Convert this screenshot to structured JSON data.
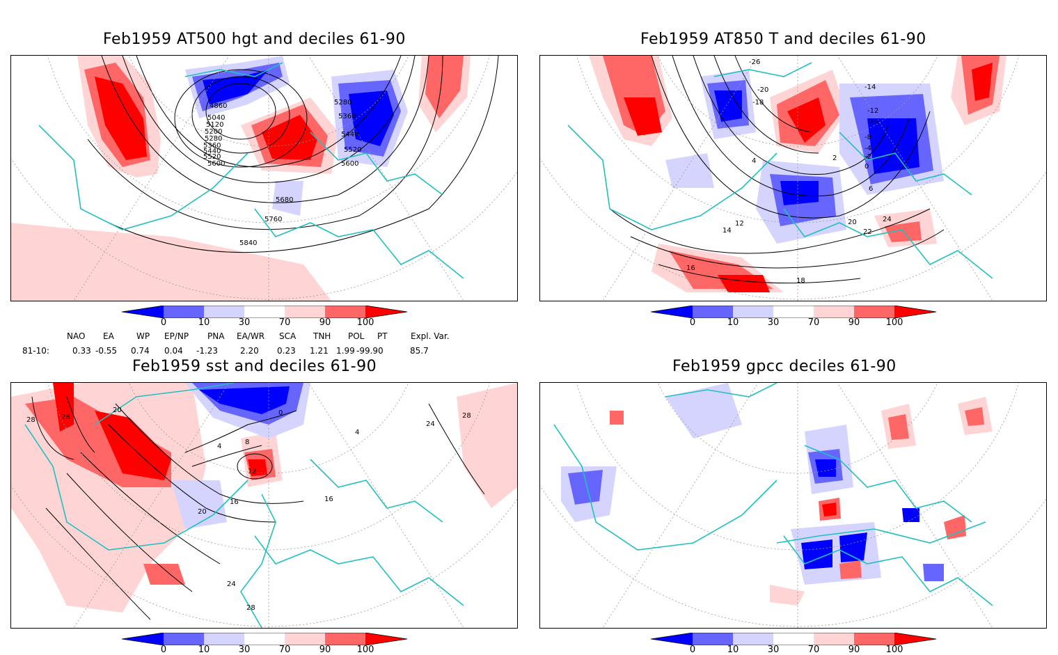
{
  "panels": [
    {
      "title": "Feb1959  AT500 hgt and deciles 61-90",
      "contour_labels": [
        "4860",
        "5040",
        "5120",
        "5200",
        "5280",
        "5360",
        "5440",
        "5520",
        "5600",
        "5280",
        "5360",
        "5440",
        "5520",
        "5600",
        "5680",
        "5760",
        "5840"
      ]
    },
    {
      "title": "Feb1959  AT850 T and deciles 61-90",
      "contour_labels": [
        "-26",
        "-20",
        "-18",
        "-14",
        "-12",
        "-10",
        "-8",
        "-4",
        "-2",
        "0",
        "2",
        "4",
        "6",
        "12",
        "14",
        "16",
        "18",
        "20",
        "22",
        "24"
      ]
    },
    {
      "title": "Feb1959  sst and deciles 61-90",
      "contour_labels": [
        "28",
        "28",
        "20",
        "24",
        "28",
        "0",
        "4",
        "8",
        "12",
        "16",
        "16",
        "20",
        "24",
        "28",
        "4"
      ]
    },
    {
      "title": "Feb1959  gpcc deciles 61-90",
      "contour_labels": []
    }
  ],
  "colorbar": {
    "labels": [
      "0",
      "10",
      "30",
      "70",
      "90",
      "100"
    ],
    "colors": [
      "#0000ff",
      "#6666ff",
      "#d4d4ff",
      "#ffffff",
      "#ffd4d4",
      "#ff6666",
      "#ff0000"
    ]
  },
  "indices": {
    "headers": [
      "NAO",
      "EA",
      "WP",
      "EP/NP",
      "PNA",
      "EA/WR",
      "SCA",
      "TNH",
      "POL",
      "PT",
      "Expl. Var."
    ],
    "row_label": "81-10:",
    "values": [
      "0.33",
      "-0.55",
      "0.74",
      "0.04",
      "-1.23",
      "2.20",
      "0.23",
      "1.21",
      "1.99",
      "-99.90",
      "85.7"
    ]
  },
  "colors": {
    "coast": "#20c0c0",
    "grid": "#999999",
    "contour": "#000000"
  }
}
